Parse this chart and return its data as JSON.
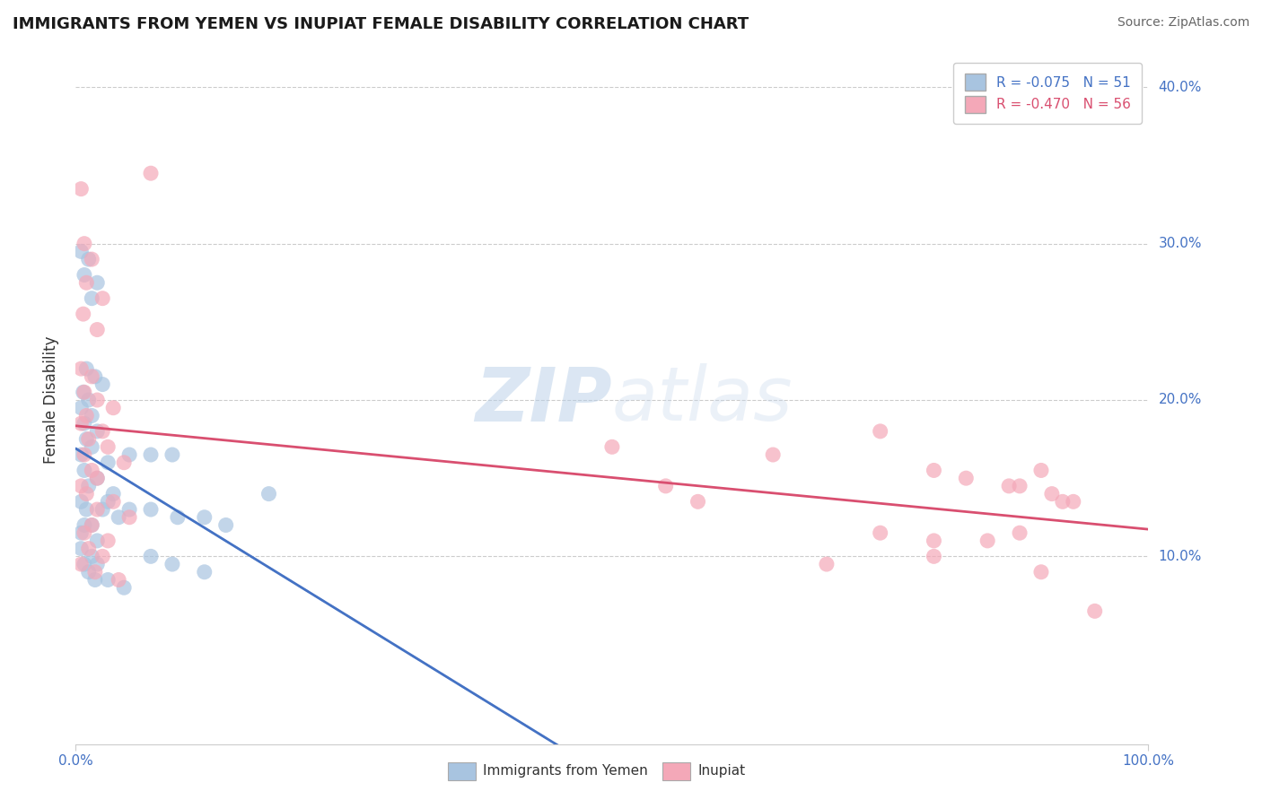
{
  "title": "IMMIGRANTS FROM YEMEN VS INUPIAT FEMALE DISABILITY CORRELATION CHART",
  "source": "Source: ZipAtlas.com",
  "ylabel": "Female Disability",
  "legend_r1": "R = -0.075",
  "legend_n1": "N = 51",
  "legend_r2": "R = -0.470",
  "legend_n2": "N = 56",
  "legend_label1": "Immigrants from Yemen",
  "legend_label2": "Inupiat",
  "xlim": [
    0,
    100
  ],
  "ylim": [
    -2,
    42
  ],
  "yticks": [
    10,
    20,
    30,
    40
  ],
  "ytick_labels": [
    "10.0%",
    "20.0%",
    "30.0%",
    "40.0%"
  ],
  "blue_color": "#a8c4e0",
  "pink_color": "#f4a8b8",
  "blue_line_color": "#4472c4",
  "pink_line_color": "#d94f70",
  "watermark_zip": "ZIP",
  "watermark_atlas": "atlas",
  "blue_scatter": [
    [
      0.5,
      29.5
    ],
    [
      1.2,
      29.0
    ],
    [
      0.8,
      28.0
    ],
    [
      2.0,
      27.5
    ],
    [
      1.5,
      26.5
    ],
    [
      1.0,
      22.0
    ],
    [
      1.8,
      21.5
    ],
    [
      2.5,
      21.0
    ],
    [
      0.7,
      20.5
    ],
    [
      1.2,
      20.0
    ],
    [
      0.5,
      19.5
    ],
    [
      1.5,
      19.0
    ],
    [
      0.8,
      18.5
    ],
    [
      2.0,
      18.0
    ],
    [
      1.0,
      17.5
    ],
    [
      1.5,
      17.0
    ],
    [
      0.5,
      16.5
    ],
    [
      3.0,
      16.0
    ],
    [
      0.8,
      15.5
    ],
    [
      2.0,
      15.0
    ],
    [
      1.2,
      14.5
    ],
    [
      3.5,
      14.0
    ],
    [
      0.5,
      13.5
    ],
    [
      2.5,
      13.0
    ],
    [
      1.0,
      13.0
    ],
    [
      4.0,
      12.5
    ],
    [
      0.8,
      12.0
    ],
    [
      1.5,
      12.0
    ],
    [
      0.5,
      11.5
    ],
    [
      2.0,
      11.0
    ],
    [
      5.0,
      16.5
    ],
    [
      7.0,
      16.5
    ],
    [
      9.0,
      16.5
    ],
    [
      3.0,
      13.5
    ],
    [
      5.0,
      13.0
    ],
    [
      7.0,
      13.0
    ],
    [
      9.5,
      12.5
    ],
    [
      12.0,
      12.5
    ],
    [
      14.0,
      12.0
    ],
    [
      18.0,
      14.0
    ],
    [
      0.5,
      10.5
    ],
    [
      1.5,
      10.0
    ],
    [
      0.8,
      9.5
    ],
    [
      2.0,
      9.5
    ],
    [
      1.2,
      9.0
    ],
    [
      1.8,
      8.5
    ],
    [
      3.0,
      8.5
    ],
    [
      4.5,
      8.0
    ],
    [
      7.0,
      10.0
    ],
    [
      9.0,
      9.5
    ],
    [
      12.0,
      9.0
    ]
  ],
  "pink_scatter": [
    [
      0.5,
      33.5
    ],
    [
      0.8,
      30.0
    ],
    [
      1.5,
      29.0
    ],
    [
      7.0,
      34.5
    ],
    [
      1.0,
      27.5
    ],
    [
      2.5,
      26.5
    ],
    [
      0.7,
      25.5
    ],
    [
      2.0,
      24.5
    ],
    [
      0.5,
      22.0
    ],
    [
      1.5,
      21.5
    ],
    [
      0.8,
      20.5
    ],
    [
      2.0,
      20.0
    ],
    [
      3.5,
      19.5
    ],
    [
      1.0,
      19.0
    ],
    [
      0.5,
      18.5
    ],
    [
      2.5,
      18.0
    ],
    [
      1.2,
      17.5
    ],
    [
      3.0,
      17.0
    ],
    [
      0.8,
      16.5
    ],
    [
      4.5,
      16.0
    ],
    [
      1.5,
      15.5
    ],
    [
      2.0,
      15.0
    ],
    [
      0.5,
      14.5
    ],
    [
      1.0,
      14.0
    ],
    [
      3.5,
      13.5
    ],
    [
      2.0,
      13.0
    ],
    [
      5.0,
      12.5
    ],
    [
      1.5,
      12.0
    ],
    [
      0.8,
      11.5
    ],
    [
      3.0,
      11.0
    ],
    [
      1.2,
      10.5
    ],
    [
      2.5,
      10.0
    ],
    [
      0.5,
      9.5
    ],
    [
      1.8,
      9.0
    ],
    [
      4.0,
      8.5
    ],
    [
      50.0,
      17.0
    ],
    [
      55.0,
      14.5
    ],
    [
      58.0,
      13.5
    ],
    [
      65.0,
      16.5
    ],
    [
      75.0,
      18.0
    ],
    [
      80.0,
      15.5
    ],
    [
      83.0,
      15.0
    ],
    [
      87.0,
      14.5
    ],
    [
      88.0,
      14.5
    ],
    [
      90.0,
      15.5
    ],
    [
      91.0,
      14.0
    ],
    [
      92.0,
      13.5
    ],
    [
      93.0,
      13.5
    ],
    [
      75.0,
      11.5
    ],
    [
      80.0,
      11.0
    ],
    [
      85.0,
      11.0
    ],
    [
      88.0,
      11.5
    ],
    [
      70.0,
      9.5
    ],
    [
      80.0,
      10.0
    ],
    [
      90.0,
      9.0
    ],
    [
      95.0,
      6.5
    ]
  ]
}
